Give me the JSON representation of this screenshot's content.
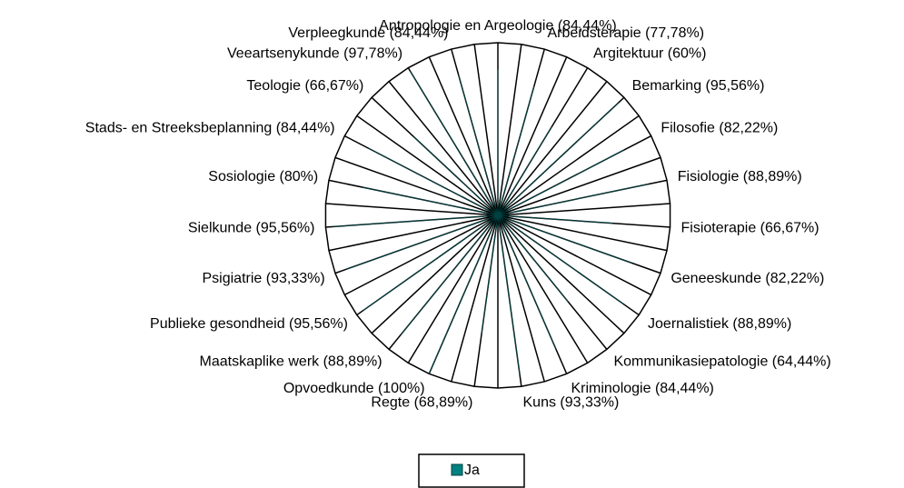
{
  "chart_data": {
    "type": "radar",
    "categories": [
      "Antropologie en Argeologie (84,44%)",
      null,
      "Arbeidsterapie (77,78%)",
      null,
      "Argitektuur (60%)",
      null,
      "Bemarking (95,56%)",
      null,
      "Filosofie (82,22%)",
      null,
      "Fisiologie (88,89%)",
      null,
      "Fisioterapie (66,67%)",
      null,
      "Geneeskunde (82,22%)",
      null,
      "Joernalistiek (88,89%)",
      null,
      "Kommunikasiepatologie (64,44%)",
      null,
      "Kriminologie (84,44%)",
      null,
      "Kuns (93,33%)",
      null,
      "Regte (68,89%)",
      null,
      "Opvoedkunde (100%)",
      null,
      "Maatskaplike werk (88,89%)",
      null,
      "Publieke gesondheid (95,56%)",
      null,
      "Psigiatrie (93,33%)",
      null,
      "Sielkunde (95,56%)",
      null,
      "Sosiologie (80%)",
      null,
      "Stads- en Streeksbeplanning (84,44%)",
      null,
      "Teologie (66,67%)",
      null,
      "Veeartsenykunde (97,78%)",
      null,
      "Verpleegkunde (84,44%)",
      null
    ],
    "series": [
      {
        "name": "Ja",
        "color": "#008080",
        "values": [
          84.44,
          0,
          77.78,
          0,
          60,
          0,
          95.56,
          0,
          82.22,
          0,
          88.89,
          0,
          66.67,
          0,
          82.22,
          0,
          88.89,
          0,
          64.44,
          0,
          84.44,
          0,
          93.33,
          0,
          68.89,
          0,
          100,
          0,
          88.89,
          0,
          95.56,
          0,
          93.33,
          0,
          95.56,
          0,
          80,
          0,
          84.44,
          0,
          66.67,
          0,
          97.78,
          0,
          84.44,
          0
        ]
      }
    ],
    "ylim": [
      0,
      100
    ],
    "yticks": [
      0,
      20,
      40,
      60,
      80,
      100
    ],
    "grid": true,
    "legend": "bottom"
  }
}
